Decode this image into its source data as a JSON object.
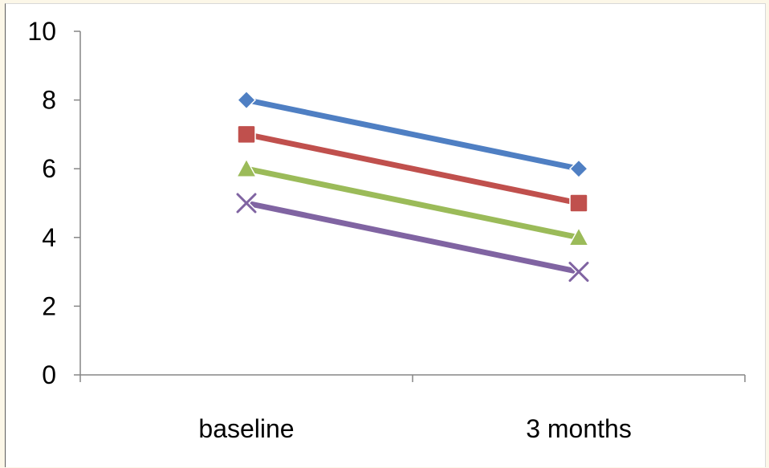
{
  "chart_data": {
    "type": "line",
    "categories": [
      "baseline",
      "3 months"
    ],
    "series": [
      {
        "values": [
          8,
          6
        ],
        "color": "#4f7fc3",
        "marker": "diamond"
      },
      {
        "values": [
          7,
          5
        ],
        "color": "#c0504d",
        "marker": "square"
      },
      {
        "values": [
          6,
          4
        ],
        "color": "#9bbb59",
        "marker": "triangle"
      },
      {
        "values": [
          5,
          3
        ],
        "color": "#8064a2",
        "marker": "x"
      }
    ],
    "title": "",
    "xlabel": "",
    "ylabel": "",
    "ylim": [
      0,
      10
    ],
    "yticks": [
      "0",
      "2",
      "4",
      "6",
      "8",
      "10"
    ],
    "grid": false,
    "legend": "none"
  }
}
